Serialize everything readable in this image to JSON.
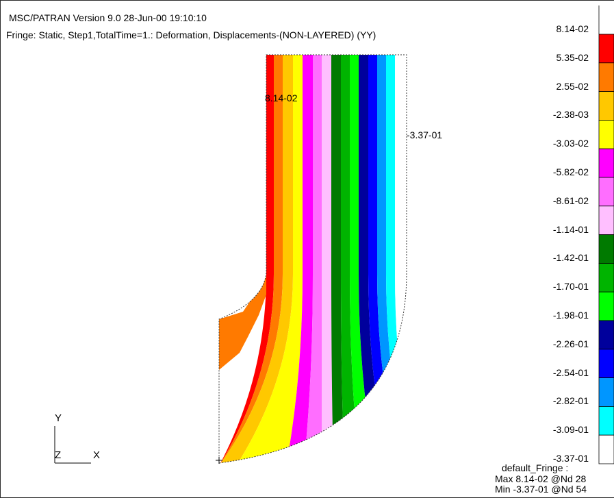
{
  "header": {
    "version_line": "MSC/PATRAN Version 9.0 28-Jun-00 19:10:10",
    "fringe_line": "Fringe: Static, Step1,TotalTime=1.: Deformation, Displacements-(NON-LAYERED) (YY)"
  },
  "plot": {
    "max_marker": "8.14-02",
    "min_marker": "-3.37-01"
  },
  "legend": {
    "values": [
      "8.14-02",
      "5.35-02",
      "2.55-02",
      "-2.38-03",
      "-3.03-02",
      "-5.82-02",
      "-8.61-02",
      "-1.14-01",
      "-1.42-01",
      "-1.70-01",
      "-1.98-01",
      "-2.26-01",
      "-2.54-01",
      "-2.82-01",
      "-3.09-01",
      "-3.37-01"
    ],
    "colors": [
      "#ff0000",
      "#ff7a00",
      "#ffc800",
      "#ffff00",
      "#ff00ff",
      "#ff6eff",
      "#ffbfff",
      "#007a00",
      "#00b400",
      "#00ff00",
      "#00009c",
      "#0000ff",
      "#0096ff",
      "#00ffff",
      "#ffffff"
    ],
    "footer_name": "default_Fringe :",
    "footer_max": "Max 8.14-02 @Nd 28",
    "footer_min": "Min -3.37-01 @Nd 54"
  },
  "triad": {
    "y_label": "Y",
    "z_label": "Z",
    "x_label": "X"
  }
}
